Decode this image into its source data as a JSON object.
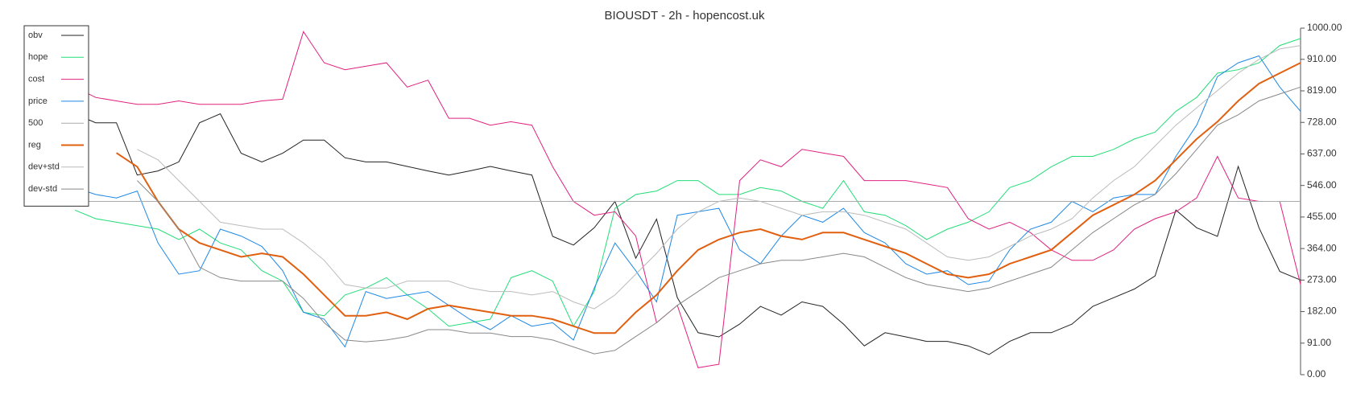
{
  "chart_data": {
    "type": "line",
    "title": "BIOUSDT - 2h - hopencost.uk",
    "ylim": [
      0,
      1000
    ],
    "yticks": [
      {
        "value": 0,
        "label": "0.00"
      },
      {
        "value": 91,
        "label": "91.00"
      },
      {
        "value": 182,
        "label": "182.00"
      },
      {
        "value": 273,
        "label": "273.00"
      },
      {
        "value": 364,
        "label": "364.00"
      },
      {
        "value": 455,
        "label": "455.00"
      },
      {
        "value": 546,
        "label": "546.00"
      },
      {
        "value": 637,
        "label": "637.00"
      },
      {
        "value": 728,
        "label": "728.00"
      },
      {
        "value": 819,
        "label": "819.00"
      },
      {
        "value": 910,
        "label": "910.00"
      },
      {
        "value": 1000,
        "label": "1000.00"
      }
    ],
    "legend": "top-left",
    "series": [
      {
        "name": "obv",
        "color": "#222222",
        "width": 1,
        "values": [
          753,
          727,
          727,
          576,
          588,
          614,
          727,
          753,
          639,
          614,
          639,
          677,
          677,
          626,
          614,
          614,
          601,
          588,
          576,
          588,
          601,
          588,
          576,
          399,
          374,
          424,
          500,
          336,
          449,
          222,
          121,
          109,
          146,
          197,
          172,
          210,
          197,
          146,
          83,
          121,
          109,
          96,
          96,
          83,
          58,
          96,
          121,
          121,
          146,
          197,
          222,
          247,
          285,
          475,
          424,
          399,
          601,
          424,
          298,
          273
        ]
      },
      {
        "name": "hope",
        "color": "#22dd77",
        "width": 1,
        "values": [
          475,
          450,
          440,
          430,
          420,
          390,
          420,
          380,
          360,
          300,
          270,
          180,
          170,
          230,
          250,
          280,
          230,
          190,
          140,
          150,
          160,
          280,
          300,
          270,
          140,
          240,
          480,
          520,
          530,
          560,
          560,
          520,
          520,
          540,
          530,
          500,
          480,
          560,
          470,
          460,
          430,
          390,
          420,
          440,
          470,
          540,
          560,
          600,
          630,
          630,
          650,
          680,
          700,
          760,
          800,
          870,
          880,
          900,
          950,
          970
        ]
      },
      {
        "name": "cost",
        "color": "#e0207f",
        "width": 1,
        "values": [
          830,
          800,
          790,
          780,
          780,
          790,
          780,
          780,
          780,
          790,
          795,
          990,
          900,
          880,
          890,
          900,
          830,
          850,
          740,
          740,
          720,
          730,
          720,
          600,
          500,
          460,
          470,
          400,
          150,
          200,
          20,
          30,
          560,
          620,
          600,
          650,
          640,
          630,
          560,
          560,
          560,
          550,
          540,
          450,
          420,
          440,
          410,
          360,
          330,
          330,
          360,
          420,
          450,
          470,
          510,
          630,
          510,
          500,
          500,
          260
        ]
      },
      {
        "name": "price",
        "color": "#1e88e5",
        "width": 1,
        "values": [
          540,
          520,
          510,
          530,
          380,
          290,
          300,
          420,
          400,
          370,
          300,
          180,
          160,
          80,
          240,
          220,
          230,
          240,
          200,
          160,
          130,
          170,
          140,
          150,
          100,
          250,
          380,
          300,
          210,
          460,
          470,
          480,
          360,
          320,
          400,
          460,
          440,
          480,
          410,
          380,
          320,
          290,
          300,
          260,
          270,
          360,
          420,
          440,
          500,
          470,
          510,
          520,
          520,
          630,
          720,
          860,
          900,
          920,
          830,
          760
        ]
      },
      {
        "name": "500",
        "color": "#aaaaaa",
        "width": 1,
        "values": [
          500,
          500,
          500,
          500,
          500,
          500,
          500,
          500,
          500,
          500,
          500,
          500,
          500,
          500,
          500,
          500,
          500,
          500,
          500,
          500,
          500,
          500,
          500,
          500,
          500,
          500,
          500,
          500,
          500,
          500,
          500,
          500,
          500,
          500,
          500,
          500,
          500,
          500,
          500,
          500,
          500,
          500,
          500,
          500,
          500,
          500,
          500,
          500,
          500,
          500,
          500,
          500,
          500,
          500,
          500,
          500,
          500,
          500,
          500,
          500
        ]
      },
      {
        "name": "reg",
        "color": "#e06010",
        "width": 2,
        "values": [
          null,
          null,
          640,
          600,
          500,
          420,
          380,
          360,
          340,
          350,
          340,
          290,
          230,
          170,
          170,
          180,
          160,
          190,
          200,
          190,
          180,
          170,
          170,
          160,
          140,
          120,
          120,
          180,
          230,
          300,
          360,
          390,
          410,
          420,
          400,
          390,
          410,
          410,
          390,
          370,
          350,
          320,
          290,
          280,
          290,
          320,
          340,
          360,
          410,
          460,
          490,
          520,
          560,
          620,
          680,
          730,
          790,
          840,
          870,
          900
        ]
      },
      {
        "name": "dev+std",
        "color": "#bbbbbb",
        "width": 1,
        "values": [
          null,
          null,
          null,
          650,
          620,
          560,
          500,
          440,
          430,
          420,
          420,
          380,
          330,
          260,
          250,
          250,
          270,
          270,
          270,
          250,
          240,
          240,
          230,
          240,
          210,
          190,
          230,
          290,
          350,
          420,
          470,
          500,
          510,
          500,
          480,
          460,
          470,
          470,
          460,
          440,
          420,
          380,
          340,
          330,
          340,
          370,
          400,
          420,
          450,
          510,
          560,
          600,
          660,
          720,
          770,
          820,
          870,
          910,
          940,
          950
        ]
      },
      {
        "name": "dev-std",
        "color": "#888888",
        "width": 1,
        "values": [
          null,
          null,
          null,
          560,
          500,
          420,
          310,
          280,
          270,
          270,
          270,
          220,
          150,
          100,
          95,
          100,
          110,
          130,
          130,
          120,
          120,
          110,
          110,
          100,
          80,
          60,
          70,
          110,
          150,
          200,
          240,
          280,
          300,
          320,
          330,
          330,
          340,
          350,
          340,
          310,
          280,
          260,
          250,
          240,
          250,
          270,
          290,
          310,
          360,
          410,
          450,
          490,
          520,
          580,
          650,
          720,
          750,
          790,
          810,
          830
        ]
      }
    ]
  }
}
